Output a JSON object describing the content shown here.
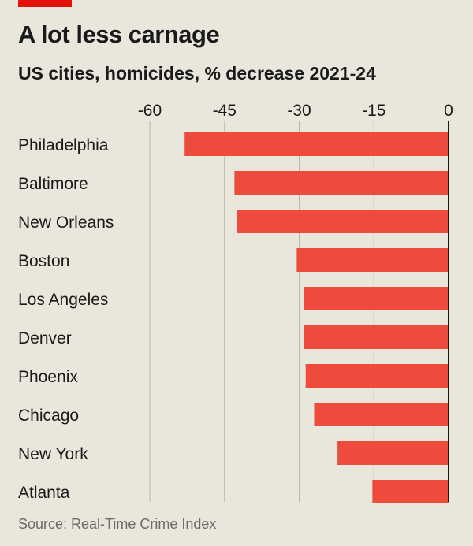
{
  "header": {
    "title": "A lot less carnage",
    "subtitle": "US cities, homicides, % decrease 2021-24"
  },
  "footer": {
    "source": "Source: Real-Time Crime Index"
  },
  "colors": {
    "bar": "#ef4b3d",
    "brand_tag": "#e3120b",
    "grid": "#b9b5aa",
    "axis": "#1a1a1a",
    "background": "#e9e6dc"
  },
  "chart_data": {
    "type": "bar",
    "orientation": "horizontal",
    "title": "A lot less carnage",
    "subtitle": "US cities, homicides, % decrease 2021-24",
    "categories": [
      "Philadelphia",
      "Baltimore",
      "New Orleans",
      "Boston",
      "Los Angeles",
      "Denver",
      "Phoenix",
      "Chicago",
      "New York",
      "Atlanta"
    ],
    "values": [
      -53,
      -43,
      -42.5,
      -30.5,
      -29,
      -29,
      -28.7,
      -27,
      -22.3,
      -15.3
    ],
    "xlim": [
      -60,
      0
    ],
    "xticks": [
      -60,
      -45,
      -30,
      -15,
      0
    ],
    "tick_labels": [
      "-60",
      "-45",
      "-30",
      "-15",
      "0"
    ],
    "axis_position": "top",
    "grid": true
  }
}
